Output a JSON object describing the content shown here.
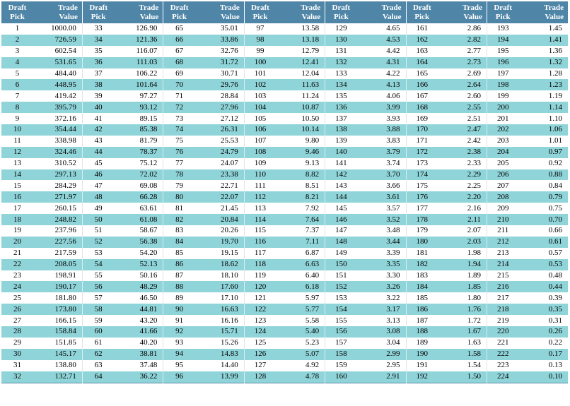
{
  "headers": {
    "pick": [
      "Draft",
      "Pick"
    ],
    "value": [
      "Trade",
      "Value"
    ]
  },
  "column_groups": 7,
  "colors": {
    "header_bg": "#4f86a8",
    "stripe_bg": "#8fd4d8",
    "row_bg": "#ffffff"
  },
  "rows": [
    [
      [
        "1",
        "1000.00"
      ],
      [
        "33",
        "126.90"
      ],
      [
        "65",
        "35.01"
      ],
      [
        "97",
        "13.58"
      ],
      [
        "129",
        "4.65"
      ],
      [
        "161",
        "2.86"
      ],
      [
        "193",
        "1.45"
      ]
    ],
    [
      [
        "2",
        "726.59"
      ],
      [
        "34",
        "121.36"
      ],
      [
        "66",
        "33.86"
      ],
      [
        "98",
        "13.18"
      ],
      [
        "130",
        "4.53"
      ],
      [
        "162",
        "2.82"
      ],
      [
        "194",
        "1.41"
      ]
    ],
    [
      [
        "3",
        "602.54"
      ],
      [
        "35",
        "116.07"
      ],
      [
        "67",
        "32.76"
      ],
      [
        "99",
        "12.79"
      ],
      [
        "131",
        "4.42"
      ],
      [
        "163",
        "2.77"
      ],
      [
        "195",
        "1.36"
      ]
    ],
    [
      [
        "4",
        "531.65"
      ],
      [
        "36",
        "111.03"
      ],
      [
        "68",
        "31.72"
      ],
      [
        "100",
        "12.41"
      ],
      [
        "132",
        "4.31"
      ],
      [
        "164",
        "2.73"
      ],
      [
        "196",
        "1.32"
      ]
    ],
    [
      [
        "5",
        "484.40"
      ],
      [
        "37",
        "106.22"
      ],
      [
        "69",
        "30.71"
      ],
      [
        "101",
        "12.04"
      ],
      [
        "133",
        "4.22"
      ],
      [
        "165",
        "2.69"
      ],
      [
        "197",
        "1.28"
      ]
    ],
    [
      [
        "6",
        "448.95"
      ],
      [
        "38",
        "101.64"
      ],
      [
        "70",
        "29.76"
      ],
      [
        "102",
        "11.63"
      ],
      [
        "134",
        "4.13"
      ],
      [
        "166",
        "2.64"
      ],
      [
        "198",
        "1.23"
      ]
    ],
    [
      [
        "7",
        "419.42"
      ],
      [
        "39",
        "97.27"
      ],
      [
        "71",
        "28.84"
      ],
      [
        "103",
        "11.24"
      ],
      [
        "135",
        "4.06"
      ],
      [
        "167",
        "2.60"
      ],
      [
        "199",
        "1.19"
      ]
    ],
    [
      [
        "8",
        "395.79"
      ],
      [
        "40",
        "93.12"
      ],
      [
        "72",
        "27.96"
      ],
      [
        "104",
        "10.87"
      ],
      [
        "136",
        "3.99"
      ],
      [
        "168",
        "2.55"
      ],
      [
        "200",
        "1.14"
      ]
    ],
    [
      [
        "9",
        "372.16"
      ],
      [
        "41",
        "89.15"
      ],
      [
        "73",
        "27.12"
      ],
      [
        "105",
        "10.50"
      ],
      [
        "137",
        "3.93"
      ],
      [
        "169",
        "2.51"
      ],
      [
        "201",
        "1.10"
      ]
    ],
    [
      [
        "10",
        "354.44"
      ],
      [
        "42",
        "85.38"
      ],
      [
        "74",
        "26.31"
      ],
      [
        "106",
        "10.14"
      ],
      [
        "138",
        "3.88"
      ],
      [
        "170",
        "2.47"
      ],
      [
        "202",
        "1.06"
      ]
    ],
    [
      [
        "11",
        "338.98"
      ],
      [
        "43",
        "81.79"
      ],
      [
        "75",
        "25.53"
      ],
      [
        "107",
        "9.80"
      ],
      [
        "139",
        "3.83"
      ],
      [
        "171",
        "2.42"
      ],
      [
        "203",
        "1.01"
      ]
    ],
    [
      [
        "12",
        "324.46"
      ],
      [
        "44",
        "78.37"
      ],
      [
        "76",
        "24.79"
      ],
      [
        "108",
        "9.46"
      ],
      [
        "140",
        "3.79"
      ],
      [
        "172",
        "2.38"
      ],
      [
        "204",
        "0.97"
      ]
    ],
    [
      [
        "13",
        "310.52"
      ],
      [
        "45",
        "75.12"
      ],
      [
        "77",
        "24.07"
      ],
      [
        "109",
        "9.13"
      ],
      [
        "141",
        "3.74"
      ],
      [
        "173",
        "2.33"
      ],
      [
        "205",
        "0.92"
      ]
    ],
    [
      [
        "14",
        "297.13"
      ],
      [
        "46",
        "72.02"
      ],
      [
        "78",
        "23.38"
      ],
      [
        "110",
        "8.82"
      ],
      [
        "142",
        "3.70"
      ],
      [
        "174",
        "2.29"
      ],
      [
        "206",
        "0.88"
      ]
    ],
    [
      [
        "15",
        "284.29"
      ],
      [
        "47",
        "69.08"
      ],
      [
        "79",
        "22.71"
      ],
      [
        "111",
        "8.51"
      ],
      [
        "143",
        "3.66"
      ],
      [
        "175",
        "2.25"
      ],
      [
        "207",
        "0.84"
      ]
    ],
    [
      [
        "16",
        "271.97"
      ],
      [
        "48",
        "66.28"
      ],
      [
        "80",
        "22.07"
      ],
      [
        "112",
        "8.21"
      ],
      [
        "144",
        "3.61"
      ],
      [
        "176",
        "2.20"
      ],
      [
        "208",
        "0.79"
      ]
    ],
    [
      [
        "17",
        "260.15"
      ],
      [
        "49",
        "63.61"
      ],
      [
        "81",
        "21.45"
      ],
      [
        "113",
        "7.92"
      ],
      [
        "145",
        "3.57"
      ],
      [
        "177",
        "2.16"
      ],
      [
        "209",
        "0.75"
      ]
    ],
    [
      [
        "18",
        "248.82"
      ],
      [
        "50",
        "61.08"
      ],
      [
        "82",
        "20.84"
      ],
      [
        "114",
        "7.64"
      ],
      [
        "146",
        "3.52"
      ],
      [
        "178",
        "2.11"
      ],
      [
        "210",
        "0.70"
      ]
    ],
    [
      [
        "19",
        "237.96"
      ],
      [
        "51",
        "58.67"
      ],
      [
        "83",
        "20.26"
      ],
      [
        "115",
        "7.37"
      ],
      [
        "147",
        "3.48"
      ],
      [
        "179",
        "2.07"
      ],
      [
        "211",
        "0.66"
      ]
    ],
    [
      [
        "20",
        "227.56"
      ],
      [
        "52",
        "56.38"
      ],
      [
        "84",
        "19.70"
      ],
      [
        "116",
        "7.11"
      ],
      [
        "148",
        "3.44"
      ],
      [
        "180",
        "2.03"
      ],
      [
        "212",
        "0.61"
      ]
    ],
    [
      [
        "21",
        "217.59"
      ],
      [
        "53",
        "54.20"
      ],
      [
        "85",
        "19.15"
      ],
      [
        "117",
        "6.87"
      ],
      [
        "149",
        "3.39"
      ],
      [
        "181",
        "1.98"
      ],
      [
        "213",
        "0.57"
      ]
    ],
    [
      [
        "22",
        "208.05"
      ],
      [
        "54",
        "52.13"
      ],
      [
        "86",
        "18.62"
      ],
      [
        "118",
        "6.63"
      ],
      [
        "150",
        "3.35"
      ],
      [
        "182",
        "1.94"
      ],
      [
        "214",
        "0.53"
      ]
    ],
    [
      [
        "23",
        "198.91"
      ],
      [
        "55",
        "50.16"
      ],
      [
        "87",
        "18.10"
      ],
      [
        "119",
        "6.40"
      ],
      [
        "151",
        "3.30"
      ],
      [
        "183",
        "1.89"
      ],
      [
        "215",
        "0.48"
      ]
    ],
    [
      [
        "24",
        "190.17"
      ],
      [
        "56",
        "48.29"
      ],
      [
        "88",
        "17.60"
      ],
      [
        "120",
        "6.18"
      ],
      [
        "152",
        "3.26"
      ],
      [
        "184",
        "1.85"
      ],
      [
        "216",
        "0.44"
      ]
    ],
    [
      [
        "25",
        "181.80"
      ],
      [
        "57",
        "46.50"
      ],
      [
        "89",
        "17.10"
      ],
      [
        "121",
        "5.97"
      ],
      [
        "153",
        "3.22"
      ],
      [
        "185",
        "1.80"
      ],
      [
        "217",
        "0.39"
      ]
    ],
    [
      [
        "26",
        "173.80"
      ],
      [
        "58",
        "44.81"
      ],
      [
        "90",
        "16.63"
      ],
      [
        "122",
        "5.77"
      ],
      [
        "154",
        "3.17"
      ],
      [
        "186",
        "1.76"
      ],
      [
        "218",
        "0.35"
      ]
    ],
    [
      [
        "27",
        "166.15"
      ],
      [
        "59",
        "43.20"
      ],
      [
        "91",
        "16.16"
      ],
      [
        "123",
        "5.58"
      ],
      [
        "155",
        "3.13"
      ],
      [
        "187",
        "1.72"
      ],
      [
        "219",
        "0.31"
      ]
    ],
    [
      [
        "28",
        "158.84"
      ],
      [
        "60",
        "41.66"
      ],
      [
        "92",
        "15.71"
      ],
      [
        "124",
        "5.40"
      ],
      [
        "156",
        "3.08"
      ],
      [
        "188",
        "1.67"
      ],
      [
        "220",
        "0.26"
      ]
    ],
    [
      [
        "29",
        "151.85"
      ],
      [
        "61",
        "40.20"
      ],
      [
        "93",
        "15.26"
      ],
      [
        "125",
        "5.23"
      ],
      [
        "157",
        "3.04"
      ],
      [
        "189",
        "1.63"
      ],
      [
        "221",
        "0.22"
      ]
    ],
    [
      [
        "30",
        "145.17"
      ],
      [
        "62",
        "38.81"
      ],
      [
        "94",
        "14.83"
      ],
      [
        "126",
        "5.07"
      ],
      [
        "158",
        "2.99"
      ],
      [
        "190",
        "1.58"
      ],
      [
        "222",
        "0.17"
      ]
    ],
    [
      [
        "31",
        "138.80"
      ],
      [
        "63",
        "37.48"
      ],
      [
        "95",
        "14.40"
      ],
      [
        "127",
        "4.92"
      ],
      [
        "159",
        "2.95"
      ],
      [
        "191",
        "1.54"
      ],
      [
        "223",
        "0.13"
      ]
    ],
    [
      [
        "32",
        "132.71"
      ],
      [
        "64",
        "36.22"
      ],
      [
        "96",
        "13.99"
      ],
      [
        "128",
        "4.78"
      ],
      [
        "160",
        "2.91"
      ],
      [
        "192",
        "1.50"
      ],
      [
        "224",
        "0.10"
      ]
    ]
  ]
}
